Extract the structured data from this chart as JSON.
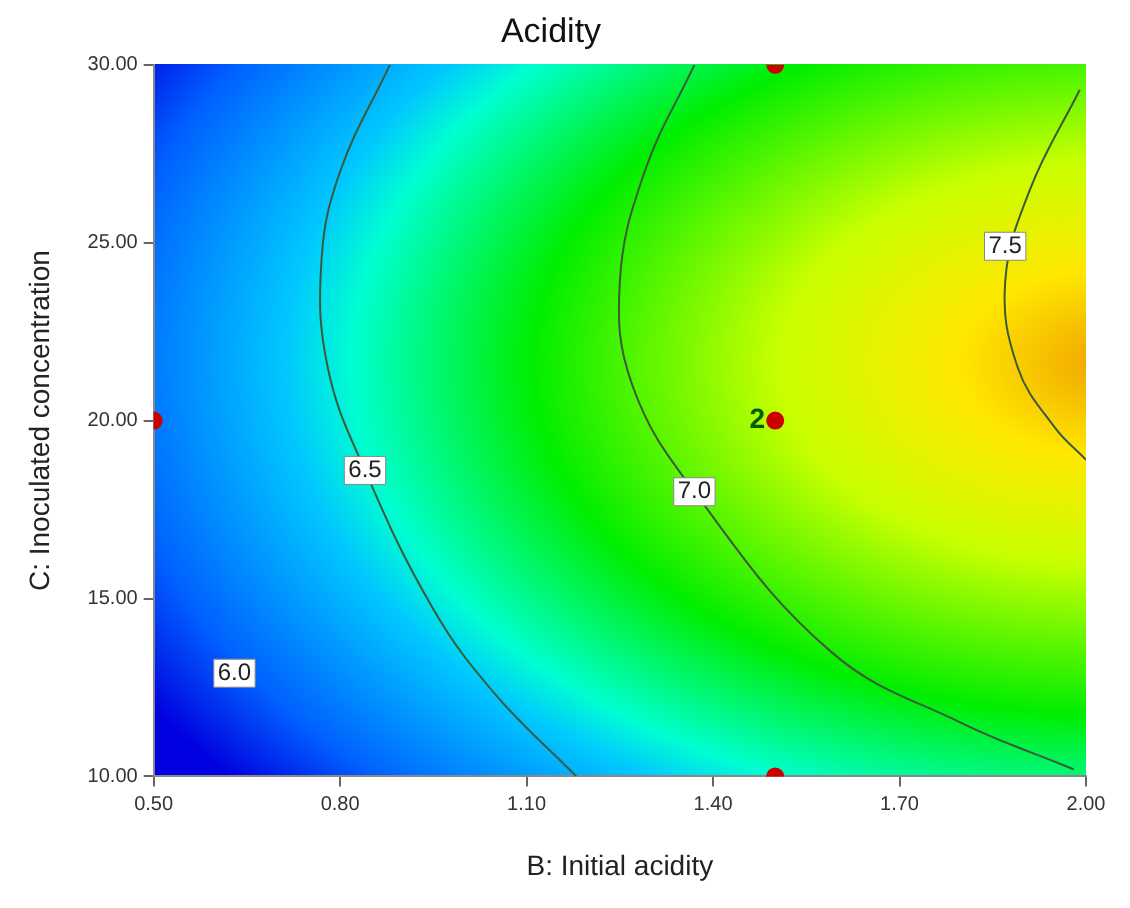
{
  "chart_data": {
    "type": "line",
    "title": "Acidity",
    "xlabel": "B: Initial acidity",
    "ylabel": "C: Inoculated concentration",
    "xlim": [
      0.5,
      2.0
    ],
    "ylim": [
      10,
      30
    ],
    "xticks": [
      {
        "value": 0.5,
        "label": "0.50"
      },
      {
        "value": 0.8,
        "label": "0.80"
      },
      {
        "value": 1.1,
        "label": "1.10"
      },
      {
        "value": 1.4,
        "label": "1.40"
      },
      {
        "value": 1.7,
        "label": "1.70"
      },
      {
        "value": 2.0,
        "label": "2.00"
      }
    ],
    "yticks": [
      {
        "value": 10,
        "label": "10.00"
      },
      {
        "value": 15,
        "label": "15.00"
      },
      {
        "value": 20,
        "label": "20.00"
      },
      {
        "value": 25,
        "label": "25.00"
      },
      {
        "value": 30,
        "label": "30.00"
      }
    ],
    "grid": false,
    "legend": false,
    "line_style": "solid",
    "series": [
      {
        "type": "line",
        "color": "#3a5a3a",
        "x": [
          0.88,
          0.8,
          0.77,
          0.78,
          0.84,
          0.95,
          1.05,
          1.18
        ],
        "values": [
          30,
          27,
          24.5,
          21.5,
          18.6,
          14.7,
          12.3,
          10
        ]
      },
      {
        "type": "line",
        "color": "#3a5a3a",
        "x": [
          1.37,
          1.29,
          1.25,
          1.27,
          1.37,
          1.59,
          1.8,
          1.98
        ],
        "values": [
          30,
          27,
          23.9,
          21,
          18,
          13.5,
          11.5,
          10.2
        ]
      },
      {
        "type": "line",
        "color": "#3a5a3a",
        "x": [
          1.99,
          1.91,
          1.87,
          1.89,
          1.95,
          2.0
        ],
        "values": [
          29.3,
          26.5,
          23.9,
          21.5,
          19.8,
          18.9
        ]
      },
      {
        "type": "scatter",
        "color": "#cc0000",
        "marker": "circle",
        "x": [
          0.5,
          1.5,
          1.5,
          1.5
        ],
        "values": [
          20,
          30,
          20,
          10
        ]
      }
    ],
    "annotations": [
      {
        "text": "6.0",
        "x": 0.63,
        "y": 12.9
      },
      {
        "text": "6.5",
        "x": 0.84,
        "y": 18.6
      },
      {
        "text": "7.0",
        "x": 1.37,
        "y": 18.0
      },
      {
        "text": "7.5",
        "x": 1.87,
        "y": 24.9
      },
      {
        "text": "2",
        "x": 1.5,
        "y": 20
      }
    ]
  }
}
